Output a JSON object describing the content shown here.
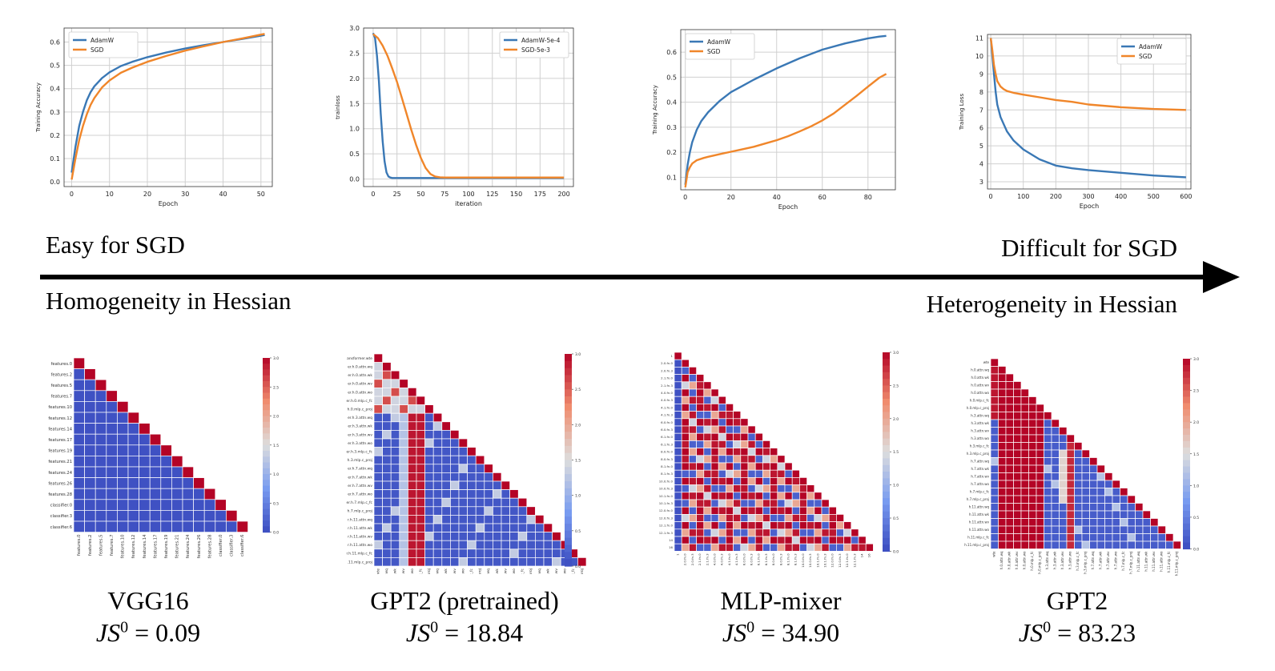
{
  "colors": {
    "blue": "#3a78b5",
    "orange": "#f0862a",
    "grid": "#d0d0d0",
    "cell_border": "#ffffff"
  },
  "labels": {
    "easy": "Easy for SGD",
    "difficult": "Difficult for SGD",
    "homogeneity": "Homogeneity in Hessian",
    "heterogeneity": "Heterogeneity in Hessian"
  },
  "models": [
    {
      "name": "VGG16",
      "js_lhs": "JS",
      "js_sup": "0",
      "js_val": "= 0.09"
    },
    {
      "name": "GPT2 (pretrained)",
      "js_lhs": "JS",
      "js_sup": "0",
      "js_val": "= 18.84"
    },
    {
      "name": "MLP-mixer",
      "js_lhs": "JS",
      "js_sup": "0",
      "js_val": "= 34.90"
    },
    {
      "name": "GPT2",
      "js_lhs": "JS",
      "js_sup": "0",
      "js_val": "= 83.23"
    }
  ],
  "chart_data": [
    {
      "type": "line",
      "xlabel": "Epoch",
      "ylabel": "Training Accuracy",
      "xlim": [
        -2,
        53
      ],
      "ylim": [
        -0.02,
        0.66
      ],
      "xticks": [
        0,
        10,
        20,
        30,
        40,
        50
      ],
      "yticks": [
        0.0,
        0.1,
        0.2,
        0.3,
        0.4,
        0.5,
        0.6
      ],
      "grid": true,
      "legend": "top-left",
      "series": [
        {
          "name": "AdamW",
          "color": "#3a78b5",
          "x": [
            0,
            1,
            2,
            3,
            4,
            5,
            6,
            8,
            10,
            13,
            16,
            20,
            25,
            30,
            35,
            40,
            45,
            50,
            51
          ],
          "y": [
            0.04,
            0.15,
            0.24,
            0.3,
            0.35,
            0.385,
            0.41,
            0.445,
            0.47,
            0.497,
            0.515,
            0.535,
            0.555,
            0.572,
            0.587,
            0.6,
            0.613,
            0.627,
            0.63
          ]
        },
        {
          "name": "SGD",
          "color": "#f0862a",
          "x": [
            0,
            1,
            2,
            3,
            4,
            5,
            6,
            8,
            10,
            13,
            16,
            20,
            25,
            30,
            35,
            40,
            45,
            50,
            51
          ],
          "y": [
            0.01,
            0.1,
            0.18,
            0.24,
            0.29,
            0.33,
            0.36,
            0.405,
            0.435,
            0.468,
            0.49,
            0.515,
            0.54,
            0.563,
            0.582,
            0.6,
            0.615,
            0.632,
            0.635
          ]
        }
      ]
    },
    {
      "type": "line",
      "xlabel": "iteration",
      "ylabel": "trainloss",
      "xlim": [
        -10,
        210
      ],
      "ylim": [
        -0.15,
        3.0
      ],
      "xticks": [
        0,
        25,
        50,
        75,
        100,
        125,
        150,
        175,
        200
      ],
      "yticks": [
        0.0,
        0.5,
        1.0,
        1.5,
        2.0,
        2.5,
        3.0
      ],
      "grid": true,
      "legend": "top-right",
      "series": [
        {
          "name": "AdamW-5e-4",
          "color": "#3a78b5",
          "x": [
            0,
            2,
            4,
            6,
            8,
            10,
            12,
            14,
            16,
            18,
            20,
            25,
            30,
            40,
            60,
            100,
            150,
            200
          ],
          "y": [
            2.9,
            2.8,
            2.45,
            1.95,
            1.3,
            0.75,
            0.35,
            0.13,
            0.05,
            0.03,
            0.02,
            0.02,
            0.02,
            0.02,
            0.02,
            0.02,
            0.02,
            0.02
          ]
        },
        {
          "name": "SGD-5e-3",
          "color": "#f0862a",
          "x": [
            0,
            5,
            10,
            15,
            20,
            25,
            30,
            35,
            40,
            45,
            50,
            55,
            60,
            65,
            70,
            75,
            80,
            90,
            100,
            150,
            200
          ],
          "y": [
            2.88,
            2.8,
            2.65,
            2.45,
            2.2,
            1.93,
            1.62,
            1.3,
            0.98,
            0.68,
            0.42,
            0.22,
            0.1,
            0.05,
            0.035,
            0.03,
            0.03,
            0.03,
            0.03,
            0.03,
            0.03
          ]
        }
      ]
    },
    {
      "type": "line",
      "xlabel": "Epoch",
      "ylabel": "Training Accuracy",
      "xlim": [
        -2,
        92
      ],
      "ylim": [
        0.05,
        0.69
      ],
      "xticks": [
        0,
        20,
        40,
        60,
        80
      ],
      "yticks": [
        0.1,
        0.2,
        0.3,
        0.4,
        0.5,
        0.6
      ],
      "grid": true,
      "legend": "top-left",
      "series": [
        {
          "name": "AdamW",
          "color": "#3a78b5",
          "x": [
            0,
            1,
            2,
            3,
            5,
            7,
            10,
            15,
            20,
            25,
            30,
            40,
            50,
            60,
            70,
            80,
            85,
            88
          ],
          "y": [
            0.07,
            0.15,
            0.2,
            0.24,
            0.29,
            0.325,
            0.36,
            0.405,
            0.44,
            0.465,
            0.49,
            0.535,
            0.575,
            0.61,
            0.635,
            0.655,
            0.662,
            0.665
          ]
        },
        {
          "name": "SGD",
          "color": "#f0862a",
          "x": [
            0,
            1,
            2,
            3,
            5,
            8,
            10,
            15,
            20,
            25,
            30,
            35,
            40,
            45,
            50,
            55,
            60,
            65,
            70,
            75,
            80,
            85,
            88
          ],
          "y": [
            0.06,
            0.12,
            0.14,
            0.155,
            0.168,
            0.177,
            0.182,
            0.192,
            0.202,
            0.212,
            0.222,
            0.235,
            0.248,
            0.264,
            0.283,
            0.303,
            0.327,
            0.355,
            0.39,
            0.425,
            0.462,
            0.498,
            0.513
          ]
        }
      ]
    },
    {
      "type": "line",
      "xlabel": "Epoch",
      "ylabel": "Training Loss",
      "xlim": [
        -10,
        615
      ],
      "ylim": [
        2.6,
        11.2
      ],
      "xticks": [
        0,
        100,
        200,
        300,
        400,
        500,
        600
      ],
      "yticks": [
        3,
        4,
        5,
        6,
        7,
        8,
        9,
        10,
        11
      ],
      "grid": true,
      "legend": "top-right",
      "series": [
        {
          "name": "AdamW",
          "color": "#3a78b5",
          "x": [
            0,
            5,
            10,
            15,
            20,
            30,
            40,
            50,
            70,
            100,
            150,
            200,
            250,
            300,
            400,
            500,
            600
          ],
          "y": [
            11.0,
            10.0,
            9.0,
            8.0,
            7.3,
            6.6,
            6.2,
            5.8,
            5.3,
            4.8,
            4.25,
            3.9,
            3.75,
            3.65,
            3.5,
            3.35,
            3.25
          ]
        },
        {
          "name": "SGD",
          "color": "#f0862a",
          "x": [
            0,
            5,
            10,
            15,
            20,
            30,
            40,
            50,
            70,
            100,
            150,
            200,
            250,
            300,
            400,
            500,
            600
          ],
          "y": [
            11.0,
            10.3,
            9.5,
            9.0,
            8.6,
            8.3,
            8.15,
            8.05,
            7.95,
            7.85,
            7.7,
            7.55,
            7.45,
            7.3,
            7.15,
            7.05,
            7.0
          ]
        }
      ]
    },
    {
      "type": "heatmap",
      "colorbar_ticks": [
        0.0,
        0.5,
        1.0,
        1.5,
        2.0,
        2.5,
        3.0
      ],
      "row_labels": [
        "features.0",
        "features.2",
        "features.5",
        "features.7",
        "features.10",
        "features.12",
        "features.14",
        "features.17",
        "features.19",
        "features.21",
        "features.24",
        "features.26",
        "features.28",
        "classifier.0",
        "classifier.3",
        "classifier.6"
      ]
    },
    {
      "type": "heatmap",
      "colorbar_ticks": [
        0.0,
        0.5,
        1.0,
        1.5,
        2.0,
        2.5,
        3.0
      ],
      "row_labels": [
        "ansformer.wte",
        "er.h.0.attn.wq",
        "er.h.0.attn.wk",
        "er.h.0.attn.wv",
        "er.h.0.attn.wo",
        "er.h.0.mlp.c_fc",
        "h.0.mlp.c_proj",
        "er.h.3.attn.wq",
        "er.h.3.attn.wk",
        "er.h.3.attn.wv",
        "er.h.3.attn.wo",
        "er.h.3.mlp.c_fc",
        "h.3.mlp.c_proj",
        "er.h.7.attn.wq",
        "er.h.7.attn.wk",
        "er.h.7.attn.wv",
        "er.h.7.attn.wo",
        "er.h.7.mlp.c_fc",
        "h.7.mlp.c_proj",
        "r.h.11.attn.wq",
        "r.h.11.attn.wk",
        "r.h.11.attn.wv",
        "r.h.11.attn.wo",
        "r.h.11.mlp.c_fc",
        ".11.mlp.c_proj"
      ]
    },
    {
      "type": "heatmap",
      "colorbar_ticks": [
        0.0,
        0.5,
        1.0,
        1.5,
        2.0,
        2.5,
        3.0
      ],
      "row_labels": [
        "1",
        "2.0.fn.0",
        "2.0.fn.3",
        "2.1.fn.0",
        "2.1.fn.3",
        "4.0.fn.0",
        "4.0.fn.3",
        "4.1.fn.0",
        "4.1.fn.3",
        "6.0.fn.0",
        "6.0.fn.3",
        "6.1.fn.0",
        "6.1.fn.3",
        "8.0.fn.0",
        "8.0.fn.3",
        "8.1.fn.0",
        "8.1.fn.3",
        "10.0.fn.0",
        "10.0.fn.3",
        "10.1.fn.0",
        "10.1.fn.3",
        "12.0.fn.0",
        "12.0.fn.3",
        "12.1.fn.0",
        "12.1.fn.3",
        "14",
        "16"
      ]
    },
    {
      "type": "heatmap",
      "colorbar_ticks": [
        0.0,
        0.5,
        1.0,
        1.5,
        2.0,
        2.5,
        3.0
      ],
      "row_labels": [
        "wte",
        "h.0.attn.wq",
        "h.0.attn.wk",
        "h.0.attn.wv",
        "h.0.attn.wo",
        "h.0.mlp.c_fc",
        "h.0.mlp.c_proj",
        "h.3.attn.wq",
        "h.3.attn.wk",
        "h.3.attn.wv",
        "h.3.attn.wo",
        "h.3.mlp.c_fc",
        "h.3.mlp.c_proj",
        "h.7.attn.wq",
        "h.7.attn.wk",
        "h.7.attn.wv",
        "h.7.attn.wo",
        "h.7.mlp.c_fc",
        "h.7.mlp.c_proj",
        "h.11.attn.wq",
        "h.11.attn.wk",
        "h.11.attn.wv",
        "h.11.attn.wo",
        "h.11.mlp.c_fc",
        "h.11.mlp.c_proj"
      ]
    }
  ]
}
